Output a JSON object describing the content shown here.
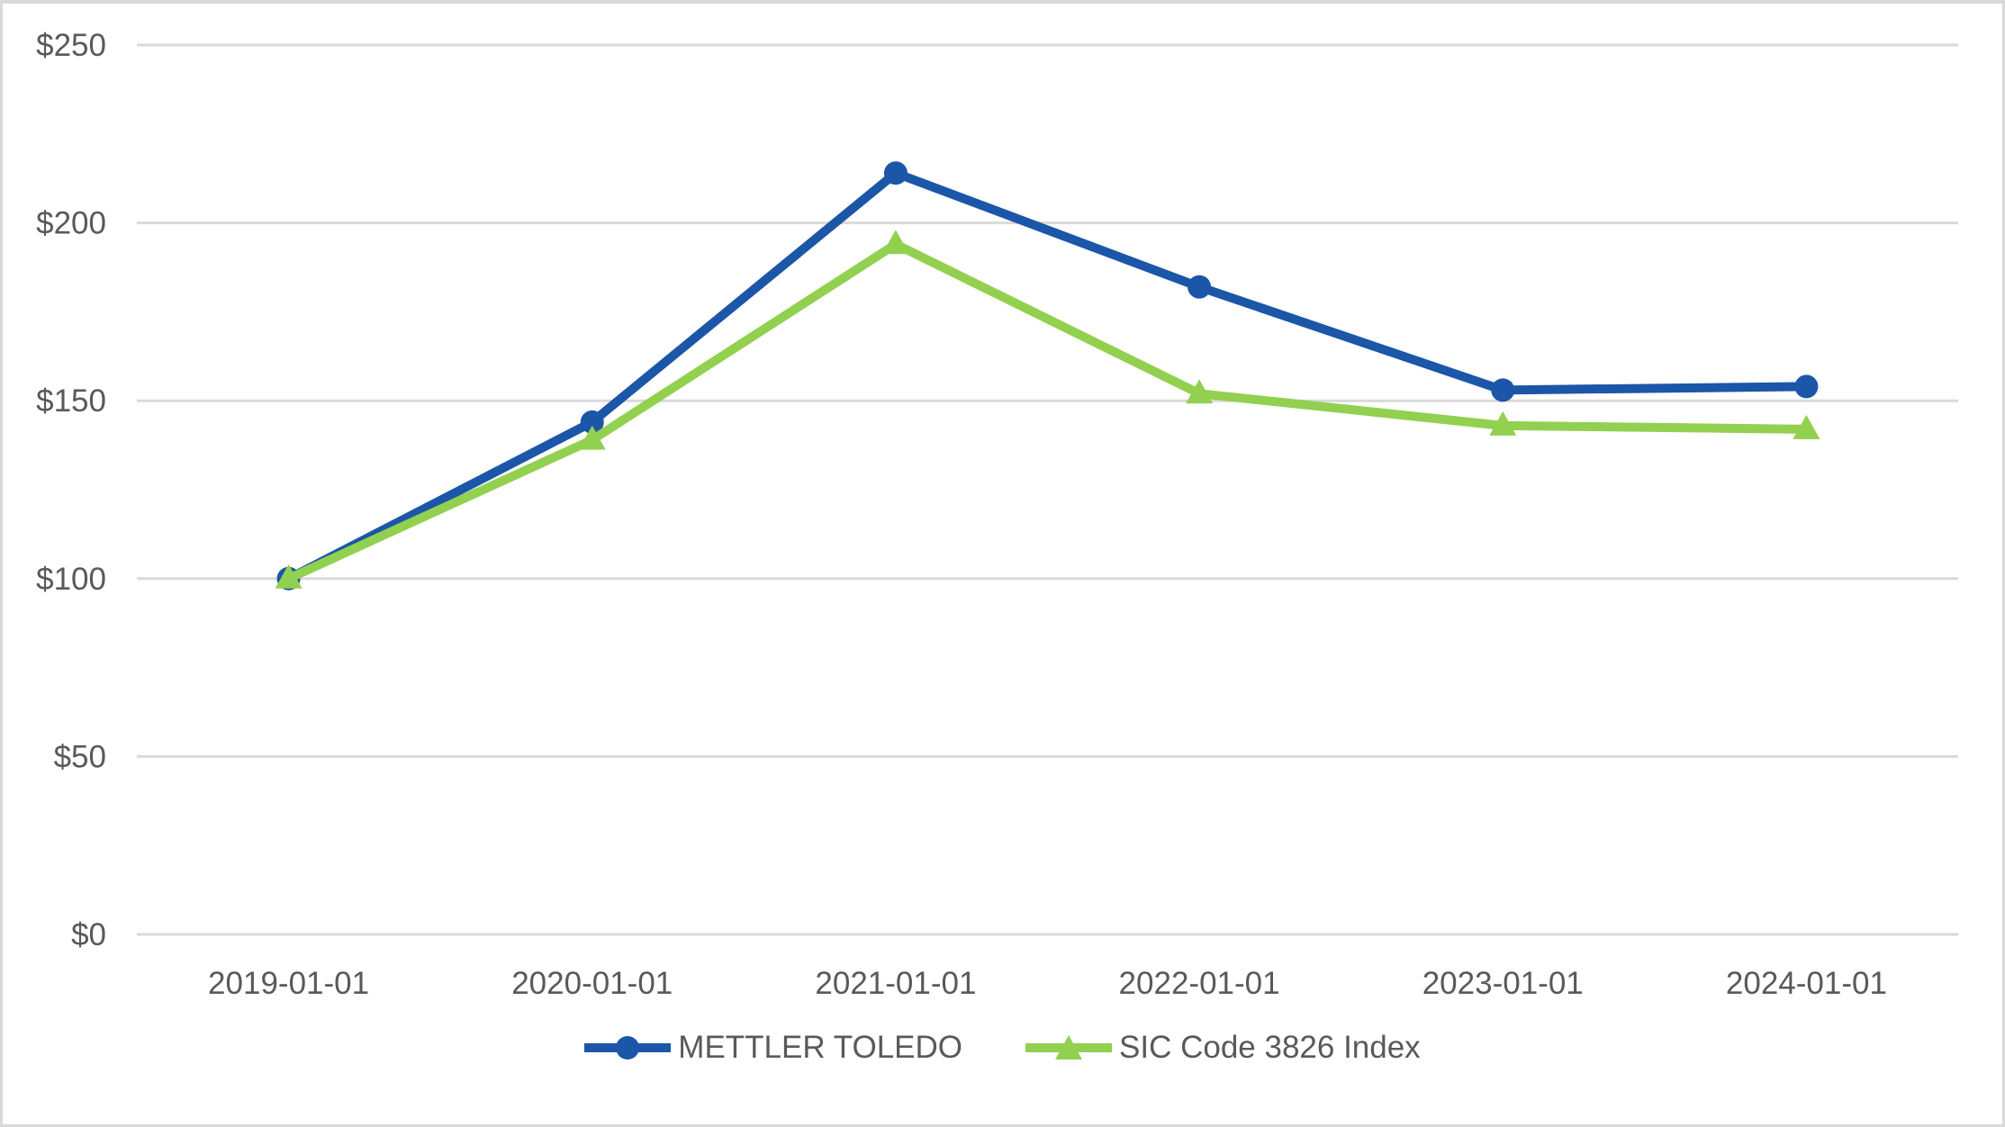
{
  "chart_data": {
    "type": "line",
    "x": [
      "2019-01-01",
      "2020-01-01",
      "2021-01-01",
      "2022-01-01",
      "2023-01-01",
      "2024-01-01"
    ],
    "series": [
      {
        "name": "METTLER TOLEDO",
        "marker": "circle",
        "color": "#1B56A8",
        "values": [
          100,
          144,
          214,
          182,
          153,
          154
        ]
      },
      {
        "name": "SIC Code 3826 Index",
        "marker": "triangle",
        "color": "#92D050",
        "values": [
          100,
          139,
          194,
          152,
          143,
          142
        ]
      }
    ],
    "ylim": [
      0,
      250
    ],
    "y_ticks": [
      {
        "value": 250,
        "label": "$250"
      },
      {
        "value": 200,
        "label": "$200"
      },
      {
        "value": 150,
        "label": "$150"
      },
      {
        "value": 100,
        "label": "$100"
      },
      {
        "value": 50,
        "label": "$50"
      },
      {
        "value": 0,
        "label": "$0"
      }
    ],
    "grid": true,
    "legend_position": "bottom",
    "title": "",
    "xlabel": "",
    "ylabel": ""
  },
  "colors": {
    "background": "#FFFFFF",
    "gridline": "#D9D9D9",
    "axis_text": "#595959",
    "frame_border": "#D9D9D9"
  }
}
